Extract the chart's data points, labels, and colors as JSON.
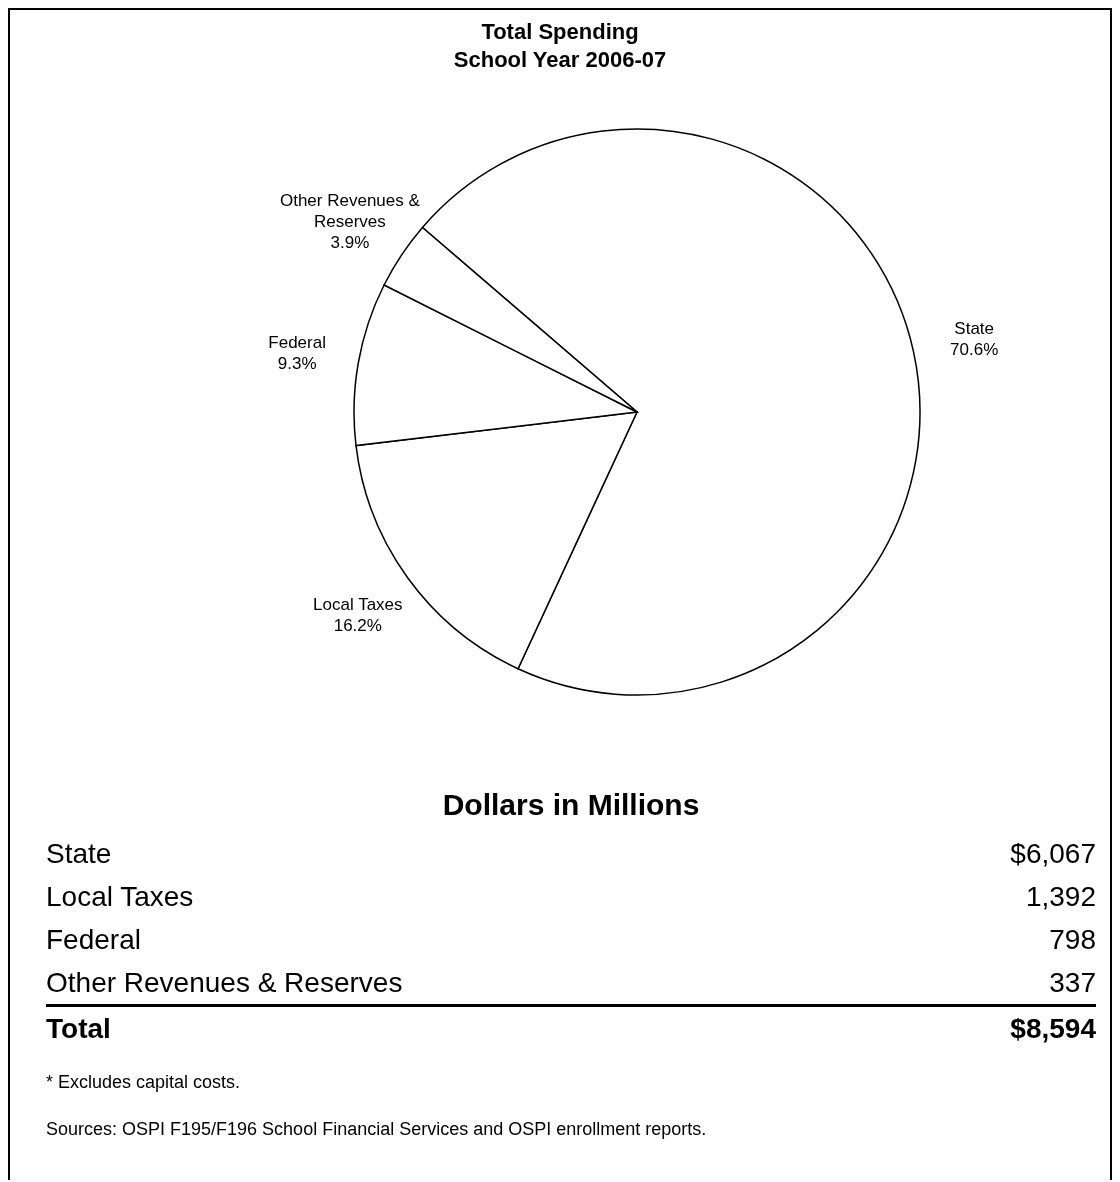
{
  "chart_data": {
    "type": "pie",
    "title": "Total Spending\nSchool Year 2006-07",
    "categories": [
      "State",
      "Local Taxes",
      "Federal",
      "Other Revenues & Reserves"
    ],
    "values": [
      70.6,
      16.2,
      9.3,
      3.9
    ],
    "value_labels": [
      "70.6%",
      "16.2%",
      "9.3%",
      "3.9%"
    ],
    "colors": [
      "#ffffff",
      "#ffffff",
      "#ffffff",
      "#ffffff"
    ],
    "totals": [
      "$8,594"
    ],
    "annotations": [
      "Dollars in Millions",
      "$6,067",
      "1,392",
      "798",
      "337",
      "Total",
      "* Excludes capital costs.",
      "Sources:  OSPI F195/F196 School Financial Services and OSPI enrollment reports."
    ],
    "legend": false
  }
}
